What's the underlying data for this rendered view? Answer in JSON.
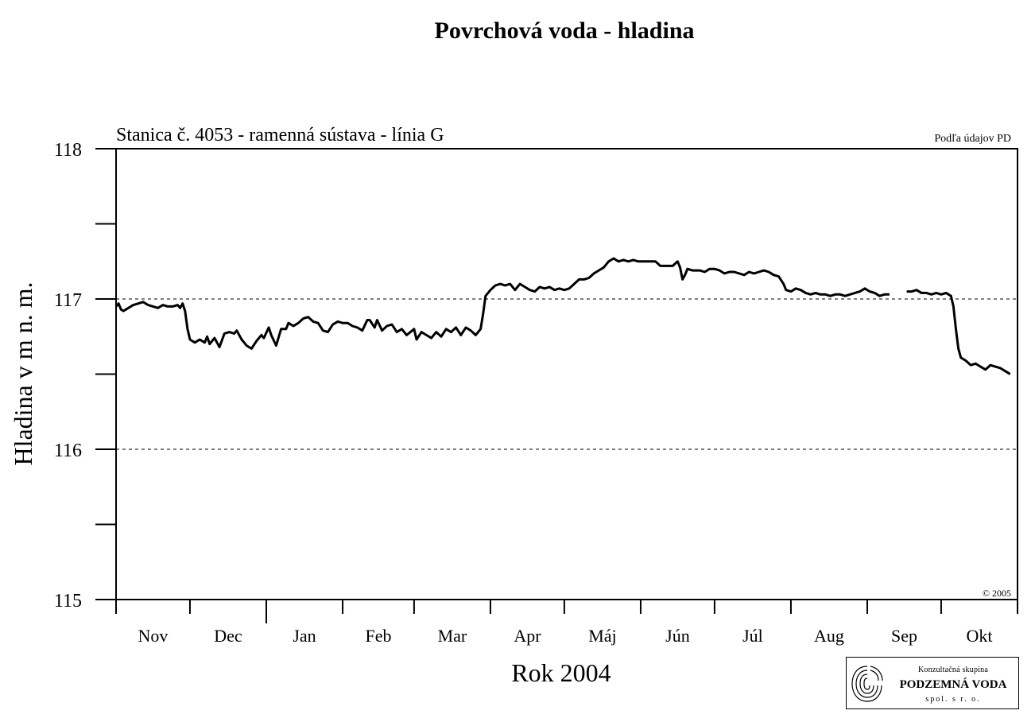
{
  "header": {
    "title": "Povrchová voda - hladina"
  },
  "chart_data": {
    "type": "line",
    "subtitle": "Stanica č. 4053 - ramenná sústava - línia G",
    "source_note": "Podľa údajov PD",
    "copyright": "© 2005",
    "xlabel": "Rok 2004",
    "ylabel": "Hladina v m n. m.",
    "ylim": [
      115,
      118
    ],
    "yticks": [
      115,
      116,
      117,
      118
    ],
    "dashed_gridlines": [
      116,
      117
    ],
    "xlim": [
      "2003-11-01",
      "2004-10-31"
    ],
    "month_labels": [
      "Nov",
      "Dec",
      "Jan",
      "Feb",
      "Mar",
      "Apr",
      "Máj",
      "Jún",
      "Júl",
      "Aug",
      "Sep",
      "Okt"
    ],
    "series": [
      {
        "values": [
          [
            [
              "2003-11-01",
              116.95
            ],
            [
              "2003-11-02",
              116.97
            ],
            [
              "2003-11-03",
              116.93
            ],
            [
              "2003-11-04",
              116.92
            ],
            [
              "2003-11-06",
              116.94
            ],
            [
              "2003-11-08",
              116.96
            ],
            [
              "2003-11-10",
              116.97
            ],
            [
              "2003-11-12",
              116.98
            ],
            [
              "2003-11-14",
              116.96
            ],
            [
              "2003-11-16",
              116.95
            ],
            [
              "2003-11-18",
              116.94
            ],
            [
              "2003-11-20",
              116.96
            ],
            [
              "2003-11-22",
              116.95
            ],
            [
              "2003-11-24",
              116.95
            ],
            [
              "2003-11-26",
              116.96
            ],
            [
              "2003-11-27",
              116.94
            ],
            [
              "2003-11-28",
              116.97
            ],
            [
              "2003-11-29",
              116.92
            ],
            [
              "2003-11-30",
              116.8
            ],
            [
              "2003-12-01",
              116.73
            ],
            [
              "2003-12-03",
              116.71
            ],
            [
              "2003-12-05",
              116.73
            ],
            [
              "2003-12-07",
              116.71
            ],
            [
              "2003-12-08",
              116.75
            ],
            [
              "2003-12-09",
              116.7
            ],
            [
              "2003-12-11",
              116.74
            ],
            [
              "2003-12-13",
              116.68
            ],
            [
              "2003-12-15",
              116.77
            ],
            [
              "2003-12-17",
              116.78
            ],
            [
              "2003-12-19",
              116.77
            ],
            [
              "2003-12-20",
              116.79
            ],
            [
              "2003-12-22",
              116.73
            ],
            [
              "2003-12-24",
              116.69
            ],
            [
              "2003-12-26",
              116.67
            ],
            [
              "2003-12-28",
              116.72
            ],
            [
              "2003-12-30",
              116.76
            ],
            [
              "2003-12-31",
              116.74
            ],
            [
              "2004-01-02",
              116.81
            ],
            [
              "2004-01-03",
              116.76
            ],
            [
              "2004-01-05",
              116.69
            ],
            [
              "2004-01-07",
              116.8
            ],
            [
              "2004-01-09",
              116.8
            ],
            [
              "2004-01-10",
              116.84
            ],
            [
              "2004-01-12",
              116.82
            ],
            [
              "2004-01-14",
              116.84
            ],
            [
              "2004-01-16",
              116.87
            ],
            [
              "2004-01-18",
              116.88
            ],
            [
              "2004-01-20",
              116.85
            ],
            [
              "2004-01-22",
              116.84
            ],
            [
              "2004-01-24",
              116.79
            ],
            [
              "2004-01-26",
              116.78
            ],
            [
              "2004-01-28",
              116.83
            ],
            [
              "2004-01-30",
              116.85
            ],
            [
              "2004-02-01",
              116.84
            ],
            [
              "2004-02-03",
              116.84
            ],
            [
              "2004-02-05",
              116.82
            ],
            [
              "2004-02-07",
              116.81
            ],
            [
              "2004-02-09",
              116.79
            ],
            [
              "2004-02-11",
              116.86
            ],
            [
              "2004-02-12",
              116.86
            ],
            [
              "2004-02-14",
              116.81
            ],
            [
              "2004-02-15",
              116.86
            ],
            [
              "2004-02-17",
              116.79
            ],
            [
              "2004-02-19",
              116.82
            ],
            [
              "2004-02-21",
              116.83
            ],
            [
              "2004-02-23",
              116.78
            ],
            [
              "2004-02-25",
              116.8
            ],
            [
              "2004-02-27",
              116.76
            ],
            [
              "2004-03-01",
              116.8
            ],
            [
              "2004-03-02",
              116.73
            ],
            [
              "2004-03-04",
              116.78
            ],
            [
              "2004-03-06",
              116.76
            ],
            [
              "2004-03-08",
              116.74
            ],
            [
              "2004-03-10",
              116.78
            ],
            [
              "2004-03-12",
              116.75
            ],
            [
              "2004-03-14",
              116.8
            ],
            [
              "2004-03-16",
              116.78
            ],
            [
              "2004-03-18",
              116.81
            ],
            [
              "2004-03-20",
              116.76
            ],
            [
              "2004-03-22",
              116.81
            ],
            [
              "2004-03-24",
              116.79
            ],
            [
              "2004-03-26",
              116.76
            ],
            [
              "2004-03-28",
              116.8
            ],
            [
              "2004-03-29",
              116.9
            ],
            [
              "2004-03-30",
              117.02
            ],
            [
              "2004-04-01",
              117.06
            ],
            [
              "2004-04-03",
              117.09
            ],
            [
              "2004-04-05",
              117.1
            ],
            [
              "2004-04-07",
              117.09
            ],
            [
              "2004-04-09",
              117.1
            ],
            [
              "2004-04-11",
              117.06
            ],
            [
              "2004-04-13",
              117.1
            ],
            [
              "2004-04-15",
              117.08
            ],
            [
              "2004-04-17",
              117.06
            ],
            [
              "2004-04-19",
              117.05
            ],
            [
              "2004-04-21",
              117.08
            ],
            [
              "2004-04-23",
              117.07
            ],
            [
              "2004-04-25",
              117.08
            ],
            [
              "2004-04-27",
              117.06
            ],
            [
              "2004-04-29",
              117.07
            ],
            [
              "2004-05-01",
              117.06
            ],
            [
              "2004-05-03",
              117.07
            ],
            [
              "2004-05-05",
              117.1
            ],
            [
              "2004-05-07",
              117.13
            ],
            [
              "2004-05-09",
              117.13
            ],
            [
              "2004-05-11",
              117.14
            ],
            [
              "2004-05-13",
              117.17
            ],
            [
              "2004-05-15",
              117.19
            ],
            [
              "2004-05-17",
              117.21
            ],
            [
              "2004-05-19",
              117.25
            ],
            [
              "2004-05-21",
              117.27
            ],
            [
              "2004-05-23",
              117.25
            ],
            [
              "2004-05-25",
              117.26
            ],
            [
              "2004-05-27",
              117.25
            ],
            [
              "2004-05-29",
              117.26
            ],
            [
              "2004-05-31",
              117.25
            ],
            [
              "2004-06-02",
              117.25
            ],
            [
              "2004-06-05",
              117.25
            ],
            [
              "2004-06-07",
              117.25
            ],
            [
              "2004-06-09",
              117.22
            ],
            [
              "2004-06-12",
              117.22
            ],
            [
              "2004-06-14",
              117.22
            ],
            [
              "2004-06-16",
              117.25
            ],
            [
              "2004-06-17",
              117.21
            ],
            [
              "2004-06-18",
              117.13
            ],
            [
              "2004-06-19",
              117.16
            ],
            [
              "2004-06-20",
              117.2
            ],
            [
              "2004-06-22",
              117.19
            ],
            [
              "2004-06-25",
              117.19
            ],
            [
              "2004-06-27",
              117.18
            ],
            [
              "2004-06-29",
              117.2
            ],
            [
              "2004-07-01",
              117.2
            ],
            [
              "2004-07-03",
              117.19
            ],
            [
              "2004-07-05",
              117.17
            ],
            [
              "2004-07-07",
              117.18
            ],
            [
              "2004-07-09",
              117.18
            ],
            [
              "2004-07-11",
              117.17
            ],
            [
              "2004-07-13",
              117.16
            ],
            [
              "2004-07-15",
              117.18
            ],
            [
              "2004-07-17",
              117.17
            ],
            [
              "2004-07-19",
              117.18
            ],
            [
              "2004-07-21",
              117.19
            ],
            [
              "2004-07-23",
              117.18
            ],
            [
              "2004-07-25",
              117.16
            ],
            [
              "2004-07-27",
              117.15
            ],
            [
              "2004-07-29",
              117.1
            ],
            [
              "2004-07-30",
              117.06
            ],
            [
              "2004-08-01",
              117.05
            ],
            [
              "2004-08-03",
              117.07
            ],
            [
              "2004-08-05",
              117.06
            ],
            [
              "2004-08-07",
              117.04
            ],
            [
              "2004-08-09",
              117.03
            ],
            [
              "2004-08-11",
              117.04
            ],
            [
              "2004-08-13",
              117.03
            ],
            [
              "2004-08-15",
              117.03
            ],
            [
              "2004-08-17",
              117.02
            ],
            [
              "2004-08-19",
              117.03
            ],
            [
              "2004-08-21",
              117.03
            ],
            [
              "2004-08-23",
              117.02
            ],
            [
              "2004-08-25",
              117.03
            ],
            [
              "2004-08-27",
              117.04
            ],
            [
              "2004-08-29",
              117.05
            ],
            [
              "2004-08-31",
              117.07
            ],
            [
              "2004-09-02",
              117.05
            ],
            [
              "2004-09-04",
              117.04
            ],
            [
              "2004-09-06",
              117.02
            ],
            [
              "2004-09-08",
              117.03
            ],
            [
              "2004-09-10",
              117.03
            ]
          ],
          [
            [
              "2004-09-17",
              117.05
            ],
            [
              "2004-09-19",
              117.05
            ],
            [
              "2004-09-21",
              117.06
            ],
            [
              "2004-09-23",
              117.04
            ],
            [
              "2004-09-25",
              117.04
            ],
            [
              "2004-09-27",
              117.03
            ],
            [
              "2004-09-29",
              117.04
            ],
            [
              "2004-10-01",
              117.03
            ],
            [
              "2004-10-03",
              117.04
            ],
            [
              "2004-10-05",
              117.02
            ],
            [
              "2004-10-06",
              116.95
            ],
            [
              "2004-10-07",
              116.8
            ],
            [
              "2004-10-08",
              116.67
            ],
            [
              "2004-10-09",
              116.61
            ],
            [
              "2004-10-11",
              116.59
            ],
            [
              "2004-10-13",
              116.56
            ],
            [
              "2004-10-15",
              116.57
            ],
            [
              "2004-10-17",
              116.55
            ],
            [
              "2004-10-19",
              116.53
            ],
            [
              "2004-10-21",
              116.56
            ],
            [
              "2004-10-23",
              116.55
            ],
            [
              "2004-10-25",
              116.54
            ],
            [
              "2004-10-27",
              116.52
            ],
            [
              "2004-10-29",
              116.5
            ]
          ]
        ]
      }
    ]
  },
  "logo": {
    "line1": "Konzultačná skupina",
    "line2": "PODZEMNÁ VODA",
    "line3": "spol. s r. o."
  }
}
